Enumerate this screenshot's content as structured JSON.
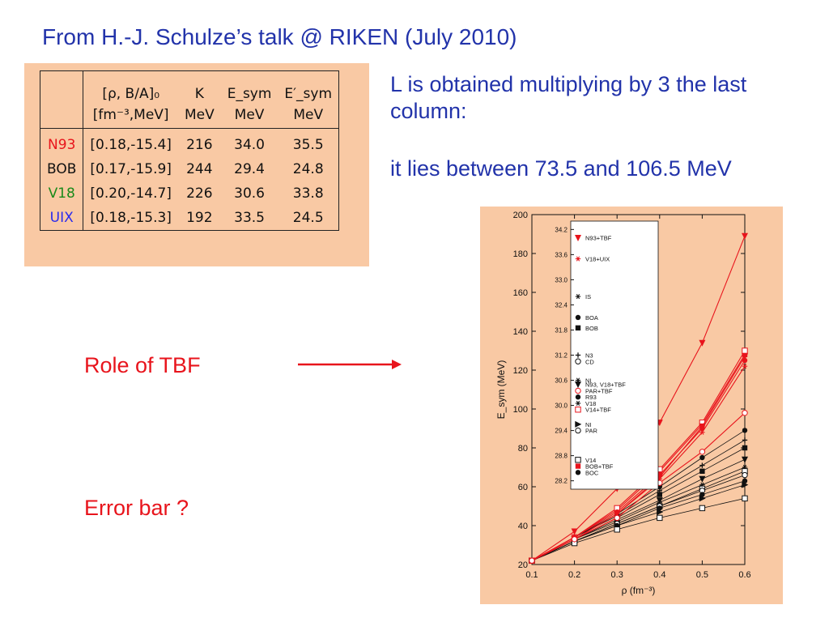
{
  "slide": {
    "title": "From H.-J. Schulze’s talk @ RIKEN (July 2010)",
    "note1": "L is obtained multiplying by 3 the last column:",
    "note2": "it lies between 73.5 and 106.5 MeV",
    "role_label": "Role of TBF",
    "error_label": "Error bar ?"
  },
  "table": {
    "headers": [
      "",
      "[ρ, B/A]₀",
      "K",
      "E_sym",
      "E′_sym"
    ],
    "units": [
      "",
      "[fm⁻³,MeV]",
      "MeV",
      "MeV",
      "MeV"
    ],
    "rows": [
      {
        "name": "N93",
        "color": "#e8141c",
        "rho_ba": "[0.18,-15.4]",
        "K": "216",
        "Esym": "34.0",
        "Esym_prime": "35.5"
      },
      {
        "name": "BOB",
        "color": "#111111",
        "rho_ba": "[0.17,-15.9]",
        "K": "244",
        "Esym": "29.4",
        "Esym_prime": "24.8"
      },
      {
        "name": "V18",
        "color": "#1a8a1a",
        "rho_ba": "[0.20,-14.7]",
        "K": "226",
        "Esym": "30.6",
        "Esym_prime": "33.8"
      },
      {
        "name": "UIX",
        "color": "#2a2aee",
        "rho_ba": "[0.18,-15.3]",
        "K": "192",
        "Esym": "33.5",
        "Esym_prime": "24.5"
      }
    ]
  },
  "chart_data": {
    "type": "line",
    "xlabel": "ρ (fm⁻³)",
    "ylabel": "E_sym (MeV)",
    "xlim": [
      0.1,
      0.6
    ],
    "ylim": [
      20,
      200
    ],
    "xticks": [
      "0.1",
      "0.2",
      "0.3",
      "0.4",
      "0.5",
      "0.6"
    ],
    "yticks": [
      "20",
      "40",
      "60",
      "80",
      "100",
      "120",
      "140",
      "160",
      "180",
      "200"
    ],
    "x": [
      0.1,
      0.2,
      0.3,
      0.4,
      0.5,
      0.6
    ],
    "series": [
      {
        "name": "N93+TBF",
        "marker": "triangle-down-filled",
        "color": "#e8141c",
        "values": [
          22,
          37,
          59,
          93,
          134,
          189
        ]
      },
      {
        "name": "V18+UIX",
        "marker": "star-open",
        "color": "#e8141c",
        "values": [
          22,
          33,
          46,
          64,
          88,
          122
        ]
      },
      {
        "marker": "square-filled",
        "color": "#e8141c",
        "values": [
          22,
          34,
          48,
          68,
          92,
          128
        ]
      },
      {
        "marker": "square-open",
        "color": "#e8141c",
        "values": [
          22,
          34,
          49,
          69,
          93,
          130
        ]
      },
      {
        "marker": "circle-filled",
        "color": "#e8141c",
        "values": [
          22,
          34,
          47,
          66,
          90,
          125
        ]
      },
      {
        "marker": "triangle-down-filled",
        "color": "#e8141c",
        "values": [
          22,
          33,
          46,
          65,
          91,
          127
        ]
      },
      {
        "marker": "circle-open",
        "color": "#e8141c",
        "values": [
          22,
          33,
          44,
          62,
          78,
          98
        ]
      },
      {
        "marker": "circle-filled",
        "color": "#111111",
        "values": [
          22,
          34,
          46,
          60,
          75,
          89
        ]
      },
      {
        "marker": "plus",
        "color": "#111111",
        "values": [
          22,
          34,
          45,
          58,
          71,
          84
        ]
      },
      {
        "marker": "square-filled",
        "color": "#111111",
        "values": [
          22,
          33,
          44,
          56,
          68,
          80
        ]
      },
      {
        "marker": "triangle-down-filled",
        "color": "#111111",
        "values": [
          22,
          33,
          43,
          53,
          64,
          74
        ]
      },
      {
        "marker": "star",
        "color": "#111111",
        "values": [
          22,
          33,
          42,
          52,
          61,
          70
        ]
      },
      {
        "marker": "square-open",
        "color": "#111111",
        "values": [
          22,
          32,
          41,
          50,
          59,
          68
        ]
      },
      {
        "marker": "circle-open",
        "color": "#111111",
        "values": [
          22,
          32,
          41,
          50,
          58,
          66
        ]
      },
      {
        "marker": "circle-filled",
        "color": "#111111",
        "values": [
          22,
          32,
          40,
          49,
          56,
          63
        ]
      },
      {
        "marker": "triangle-right-filled",
        "color": "#111111",
        "values": [
          22,
          32,
          40,
          47,
          54,
          61
        ]
      },
      {
        "marker": "square-open",
        "color": "#111111",
        "values": [
          22,
          31,
          38,
          44,
          49,
          54
        ]
      }
    ],
    "inset": {
      "ylim": [
        28.0,
        34.4
      ],
      "yticks": [
        "28.2",
        "28.8",
        "29.4",
        "30.0",
        "30.6",
        "31.2",
        "31.8",
        "32.4",
        "33.0",
        "33.6",
        "34.2"
      ],
      "entries": [
        {
          "label": "N93+TBF",
          "value": 34.0,
          "marker": "triangle-down-filled",
          "color": "#e8141c"
        },
        {
          "label": "V18+UIX",
          "value": 33.5,
          "marker": "star-open",
          "color": "#e8141c"
        },
        {
          "label": "IS",
          "value": 32.6,
          "marker": "star",
          "color": "#111111"
        },
        {
          "label": "BOA",
          "value": 32.1,
          "marker": "circle-filled",
          "color": "#111111"
        },
        {
          "label": "BOB",
          "value": 31.85,
          "marker": "square-filled",
          "color": "#111111"
        },
        {
          "label": "N3",
          "value": 31.2,
          "marker": "plus",
          "color": "#111111"
        },
        {
          "label": "CD",
          "value": 31.05,
          "marker": "circle-open",
          "color": "#111111"
        },
        {
          "label": "NI",
          "value": 30.6,
          "marker": "star",
          "color": "#111111"
        },
        {
          "label": "N93, V18+TBF",
          "value": 30.5,
          "marker": "triangle-down-filled",
          "color": "#111111"
        },
        {
          "label": "PAR+TBF",
          "value": 30.35,
          "marker": "circle-open",
          "color": "#e8141c"
        },
        {
          "label": "R93",
          "value": 30.2,
          "marker": "circle-filled",
          "color": "#111111"
        },
        {
          "label": "V18",
          "value": 30.05,
          "marker": "star",
          "color": "#111111"
        },
        {
          "label": "V14+TBF",
          "value": 29.9,
          "marker": "square-open",
          "color": "#e8141c"
        },
        {
          "label": "NI",
          "value": 29.55,
          "marker": "triangle-right-filled",
          "color": "#111111"
        },
        {
          "label": "PAR",
          "value": 29.4,
          "marker": "circle-open",
          "color": "#111111"
        },
        {
          "label": "V14",
          "value": 28.7,
          "marker": "square-open",
          "color": "#111111"
        },
        {
          "label": "BOB+TBF",
          "value": 28.55,
          "marker": "square-filled",
          "color": "#e8141c"
        },
        {
          "label": "BOC",
          "value": 28.4,
          "marker": "circle-filled",
          "color": "#111111"
        }
      ]
    }
  }
}
